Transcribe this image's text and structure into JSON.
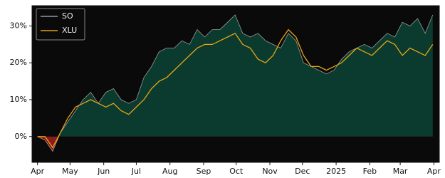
{
  "chart_data": {
    "type": "line",
    "x": [
      0,
      7,
      14,
      21,
      28,
      35,
      42,
      49,
      56,
      63,
      70,
      77,
      84,
      91,
      98,
      105,
      112,
      119,
      126,
      133,
      140,
      147,
      154,
      161,
      168,
      175,
      182,
      189,
      196,
      203,
      210,
      217,
      224,
      231,
      238,
      245,
      252,
      259,
      266,
      273,
      280,
      287,
      294,
      301,
      308,
      315,
      322,
      329,
      336,
      343,
      350,
      357,
      364
    ],
    "series": [
      {
        "name": "SO",
        "color": "#9a9a9a",
        "fill_above": "#0b3b2e",
        "fill_below": "#8b1a1a",
        "values": [
          0,
          -1,
          -4,
          1,
          4,
          7,
          10,
          12,
          9,
          12,
          13,
          10,
          9,
          10,
          16,
          19,
          23,
          24,
          24,
          26,
          25,
          29,
          27,
          29,
          29,
          31,
          33,
          28,
          27,
          28,
          26,
          25,
          24,
          28,
          26,
          20,
          19,
          18,
          17,
          18,
          21,
          23,
          24,
          25,
          24,
          26,
          28,
          27,
          31,
          30,
          32,
          28,
          33
        ]
      },
      {
        "name": "XLU",
        "color": "#e8a317",
        "values": [
          0,
          0,
          -3,
          1,
          5,
          8,
          9,
          10,
          9,
          8,
          9,
          7,
          6,
          8,
          10,
          13,
          15,
          16,
          18,
          20,
          22,
          24,
          25,
          25,
          26,
          27,
          28,
          25,
          24,
          21,
          20,
          22,
          26,
          29,
          27,
          22,
          19,
          19,
          18,
          19,
          20,
          22,
          24,
          23,
          22,
          24,
          26,
          25,
          22,
          24,
          23,
          22,
          25
        ]
      }
    ],
    "xlim": [
      -5,
      370
    ],
    "xticks": [
      {
        "value": 0,
        "label": "Apr"
      },
      {
        "value": 30,
        "label": "May"
      },
      {
        "value": 61,
        "label": "Jun"
      },
      {
        "value": 91,
        "label": "Jul"
      },
      {
        "value": 122,
        "label": "Aug"
      },
      {
        "value": 153,
        "label": "Sep"
      },
      {
        "value": 183,
        "label": "Oct"
      },
      {
        "value": 214,
        "label": "Nov"
      },
      {
        "value": 244,
        "label": "Dec"
      },
      {
        "value": 275,
        "label": "2025"
      },
      {
        "value": 306,
        "label": "Feb"
      },
      {
        "value": 334,
        "label": "Mar"
      },
      {
        "value": 365,
        "label": "Apr"
      }
    ],
    "ylim": [
      -7,
      35.5
    ],
    "yticks": [
      {
        "value": 0,
        "label": "0%"
      },
      {
        "value": 10,
        "label": "10%"
      },
      {
        "value": 20,
        "label": "20%"
      },
      {
        "value": 30,
        "label": "30%"
      }
    ],
    "legend": "upper left",
    "background": "#0a0a0a"
  }
}
